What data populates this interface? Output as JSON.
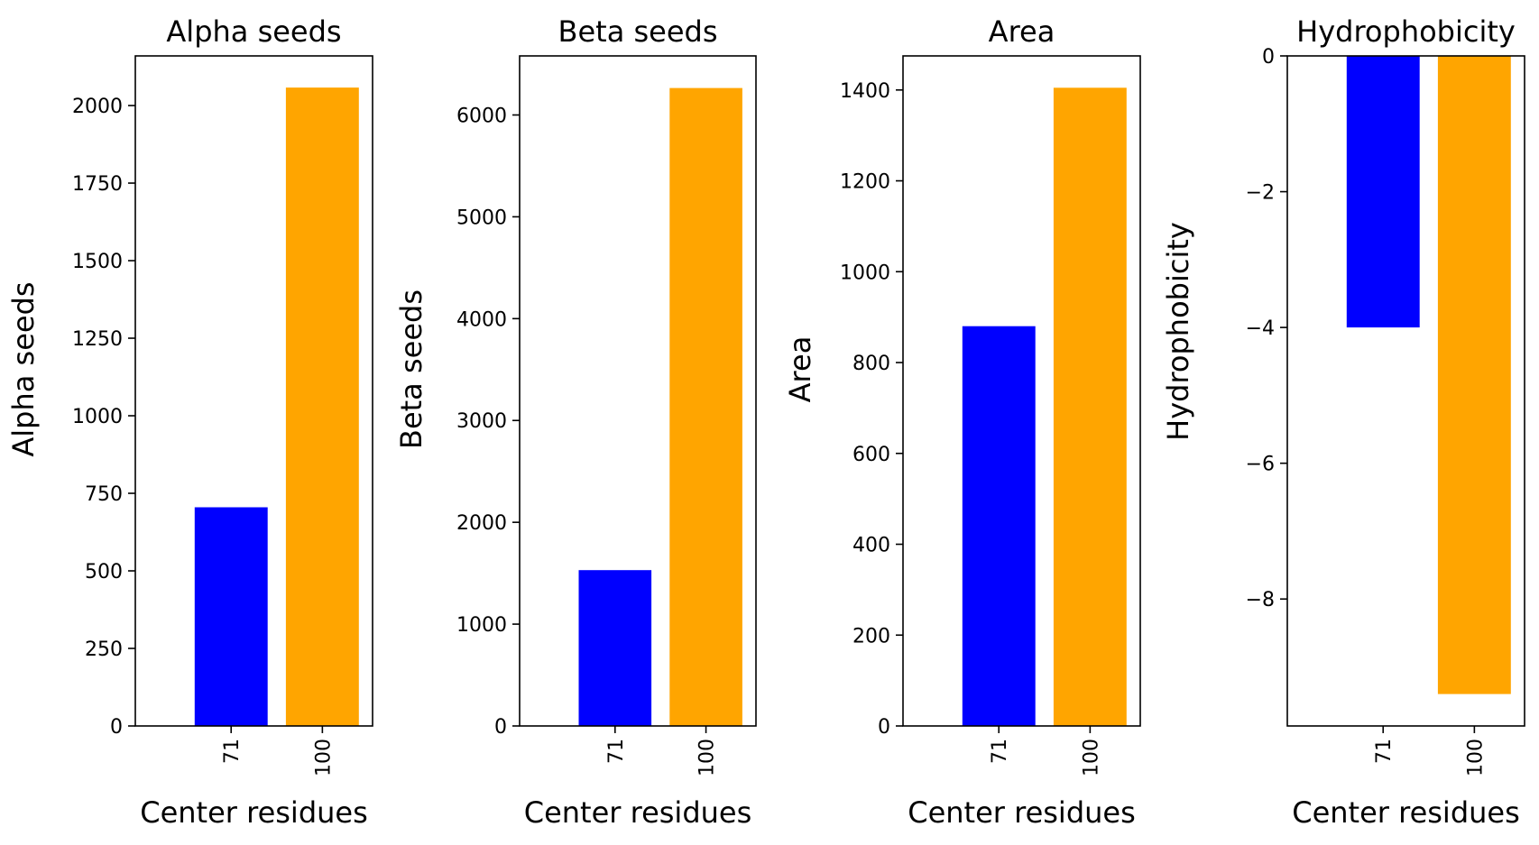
{
  "chart_data": [
    {
      "type": "bar",
      "title": "Alpha seeds",
      "xlabel": "Center residues",
      "ylabel": "Alpha seeds",
      "categories": [
        "71",
        "100"
      ],
      "values": [
        705,
        2058
      ],
      "colors": [
        "#0000ff",
        "#ffa500"
      ],
      "ylim": [
        0,
        2160
      ],
      "yticks": [
        0,
        250,
        500,
        750,
        1000,
        1250,
        1500,
        1750,
        2000
      ],
      "ytick_labels": [
        "0",
        "250",
        "500",
        "750",
        "1000",
        "1250",
        "1500",
        "1750",
        "2000"
      ],
      "grid": false,
      "legend": "none"
    },
    {
      "type": "bar",
      "title": "Beta seeds",
      "xlabel": "Center residues",
      "ylabel": "Beta seeds",
      "categories": [
        "71",
        "100"
      ],
      "values": [
        1530,
        6265
      ],
      "colors": [
        "#0000ff",
        "#ffa500"
      ],
      "ylim": [
        0,
        6580
      ],
      "yticks": [
        0,
        1000,
        2000,
        3000,
        4000,
        5000,
        6000
      ],
      "ytick_labels": [
        "0",
        "1000",
        "2000",
        "3000",
        "4000",
        "5000",
        "6000"
      ],
      "grid": false,
      "legend": "none"
    },
    {
      "type": "bar",
      "title": "Area",
      "xlabel": "Center residues",
      "ylabel": "Area",
      "categories": [
        "71",
        "100"
      ],
      "values": [
        880,
        1405
      ],
      "colors": [
        "#0000ff",
        "#ffa500"
      ],
      "ylim": [
        0,
        1475
      ],
      "yticks": [
        0,
        200,
        400,
        600,
        800,
        1000,
        1200,
        1400
      ],
      "ytick_labels": [
        "0",
        "200",
        "400",
        "600",
        "800",
        "1000",
        "1200",
        "1400"
      ],
      "grid": false,
      "legend": "none"
    },
    {
      "type": "bar",
      "title": "Hydrophobicity",
      "xlabel": "Center residues",
      "ylabel": "Hydrophobicity",
      "categories": [
        "71",
        "100"
      ],
      "values": [
        -4.0,
        -9.4
      ],
      "colors": [
        "#0000ff",
        "#ffa500"
      ],
      "ylim": [
        -9.87,
        0
      ],
      "yticks": [
        0,
        -2,
        -4,
        -6,
        -8
      ],
      "ytick_labels": [
        "0",
        "−2",
        "−4",
        "−6",
        "−8"
      ],
      "grid": false,
      "legend": "none"
    }
  ]
}
